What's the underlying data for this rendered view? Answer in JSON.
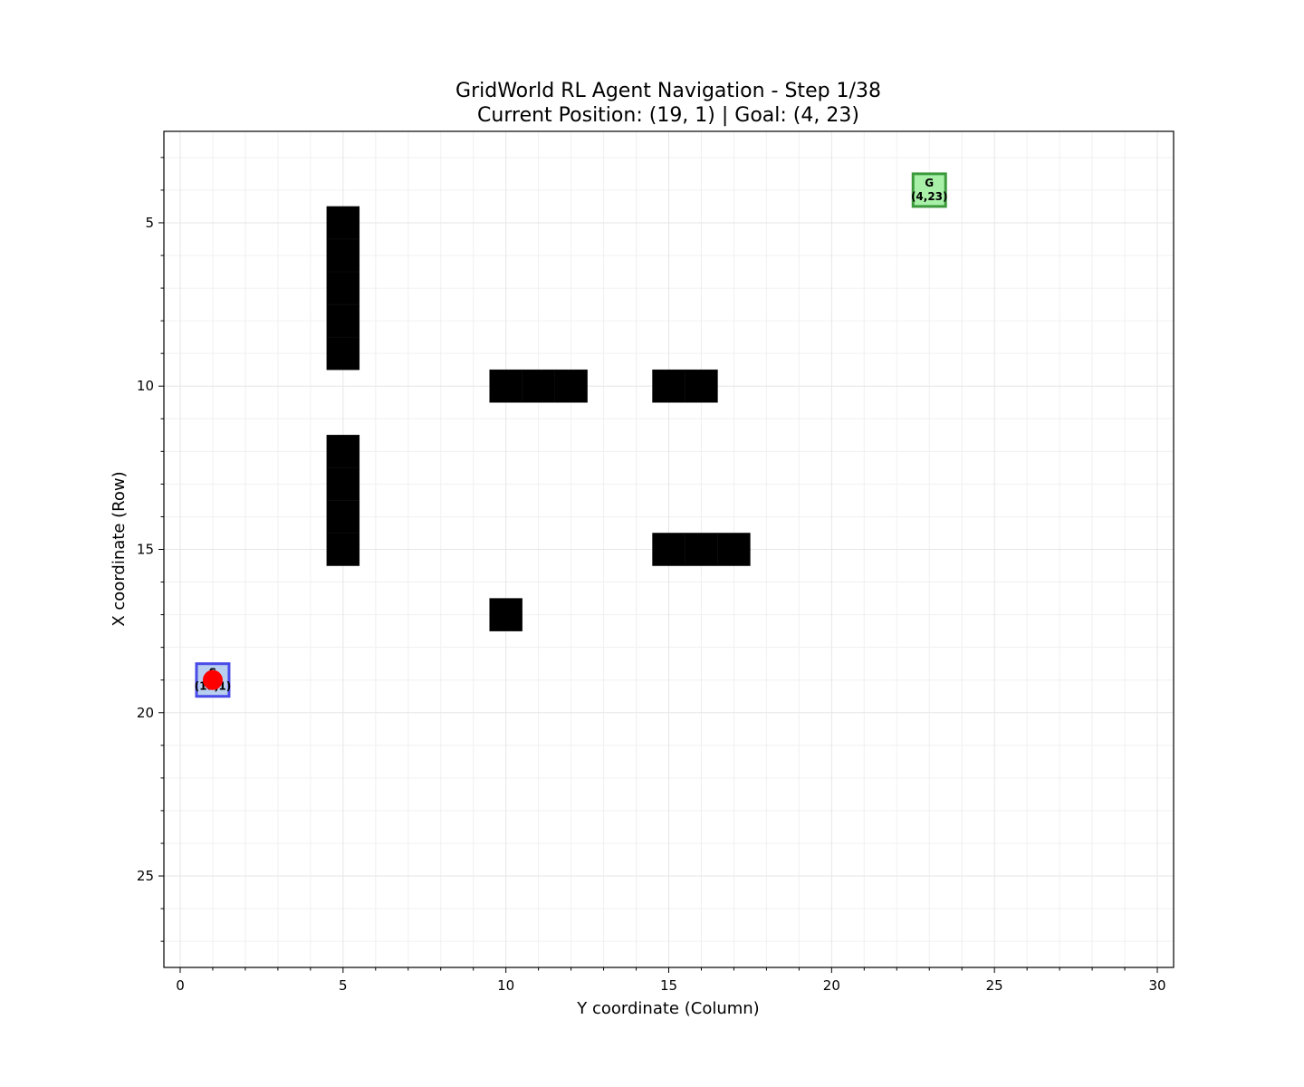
{
  "chart_data": {
    "type": "heatmap",
    "title_line1": "GridWorld RL Agent Navigation - Step 1/38",
    "title_line2": "Current Position: (19, 1) | Goal: (4, 23)",
    "xlabel": "Y coordinate (Column)",
    "ylabel": "X coordinate (Row)",
    "xlim": [
      -0.5,
      30.5
    ],
    "ylim": [
      27.8,
      2.2
    ],
    "xticks": [
      0,
      5,
      10,
      15,
      20,
      25,
      30
    ],
    "yticks": [
      5,
      10,
      15,
      20,
      25
    ],
    "grid": true,
    "obstacles": [
      {
        "row": 5,
        "col": 5
      },
      {
        "row": 6,
        "col": 5
      },
      {
        "row": 7,
        "col": 5
      },
      {
        "row": 8,
        "col": 5
      },
      {
        "row": 9,
        "col": 5
      },
      {
        "row": 10,
        "col": 10
      },
      {
        "row": 10,
        "col": 11
      },
      {
        "row": 10,
        "col": 12
      },
      {
        "row": 10,
        "col": 15
      },
      {
        "row": 10,
        "col": 16
      },
      {
        "row": 12,
        "col": 5
      },
      {
        "row": 13,
        "col": 5
      },
      {
        "row": 14,
        "col": 5
      },
      {
        "row": 15,
        "col": 5
      },
      {
        "row": 15,
        "col": 15
      },
      {
        "row": 15,
        "col": 16
      },
      {
        "row": 15,
        "col": 17
      },
      {
        "row": 17,
        "col": 10
      }
    ],
    "start": {
      "row": 19,
      "col": 1,
      "letter": "S",
      "coord_label": "(19,1)"
    },
    "goal": {
      "row": 4,
      "col": 23,
      "letter": "G",
      "coord_label": "(4,23)"
    },
    "agent": {
      "row": 19,
      "col": 1
    },
    "colors": {
      "obstacle": "#000000",
      "start_fill": "#b8cff0",
      "start_edge": "#4a4ae8",
      "goal_fill": "#a8f0a8",
      "goal_edge": "#3c9a3c",
      "agent": "#ff0000",
      "grid": "#e6e6e6"
    }
  }
}
